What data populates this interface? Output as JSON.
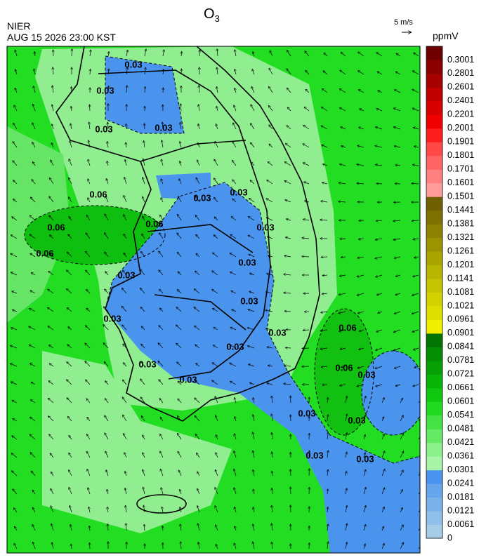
{
  "header": {
    "title": "O",
    "title_subscript": "3",
    "agency": "NIER",
    "datetime": "AUG 15 2026 23:00 KST",
    "wind_scale": "5 m/s"
  },
  "colorbar": {
    "unit": "ppmV",
    "levels": [
      {
        "label": "0",
        "color": "#a6cde8"
      },
      {
        "label": "0.0061",
        "color": "#90c0ea"
      },
      {
        "label": "0.0121",
        "color": "#7cb2ea"
      },
      {
        "label": "0.0181",
        "color": "#68a6ec"
      },
      {
        "label": "0.0241",
        "color": "#4a94ee"
      },
      {
        "label": "0.0301",
        "color": "#a8f4a8"
      },
      {
        "label": "0.0361",
        "color": "#8cf08c"
      },
      {
        "label": "0.0421",
        "color": "#66ea66"
      },
      {
        "label": "0.0481",
        "color": "#44e244"
      },
      {
        "label": "0.0541",
        "color": "#22d922"
      },
      {
        "label": "0.0601",
        "color": "#10c810"
      },
      {
        "label": "0.0661",
        "color": "#08b408"
      },
      {
        "label": "0.0721",
        "color": "#06a006"
      },
      {
        "label": "0.0781",
        "color": "#048c04"
      },
      {
        "label": "0.0841",
        "color": "#027402"
      },
      {
        "label": "0.0901",
        "color": "#f0f000"
      },
      {
        "label": "0.0961",
        "color": "#e0e000"
      },
      {
        "label": "0.1021",
        "color": "#d2d200"
      },
      {
        "label": "0.1081",
        "color": "#c4c400"
      },
      {
        "label": "0.1141",
        "color": "#b6b600"
      },
      {
        "label": "0.1201",
        "color": "#a8a400"
      },
      {
        "label": "0.1261",
        "color": "#9a9400"
      },
      {
        "label": "0.1321",
        "color": "#8a8200"
      },
      {
        "label": "0.1381",
        "color": "#7c7000"
      },
      {
        "label": "0.1441",
        "color": "#6e6000"
      },
      {
        "label": "0.1501",
        "color": "#ff9c9c"
      },
      {
        "label": "0.1601",
        "color": "#ff8080"
      },
      {
        "label": "0.1701",
        "color": "#ff6464"
      },
      {
        "label": "0.1801",
        "color": "#ff4848"
      },
      {
        "label": "0.1901",
        "color": "#ff1e1e"
      },
      {
        "label": "0.2001",
        "color": "#f00000"
      },
      {
        "label": "0.2201",
        "color": "#d80000"
      },
      {
        "label": "0.2401",
        "color": "#c00000"
      },
      {
        "label": "0.2601",
        "color": "#a60000"
      },
      {
        "label": "0.2801",
        "color": "#8c0000"
      },
      {
        "label": "0.3001",
        "color": "#700000"
      }
    ]
  },
  "map": {
    "contour_labels": [
      "0.03",
      "0.03",
      "0.03",
      "0.03",
      "0.06",
      "0.06",
      "0.06",
      "0.03",
      "0.06",
      "0.03",
      "0.03",
      "0.03",
      "0.03",
      "0.03",
      "0.03",
      "0.03",
      "0.03",
      "0.06",
      "0.06",
      "0.03",
      "0.03",
      "0.03",
      "0.03",
      "0.03",
      "0.03",
      "0.03"
    ]
  }
}
